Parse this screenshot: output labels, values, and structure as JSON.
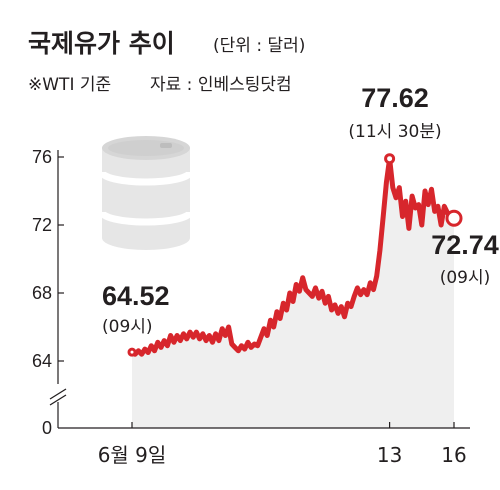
{
  "header": {
    "title": "국제유가 추이",
    "unit": "(단위 : 달러)",
    "basis": "※WTI 기준",
    "source": "자료 : 인베스팅닷컴"
  },
  "chart_data": {
    "type": "line",
    "ylim": [
      62,
      77
    ],
    "yticks": [
      "76",
      "72",
      "68",
      "64"
    ],
    "y_zero_label": "0",
    "y_axis_break": true,
    "xticks": [
      {
        "label": "6월 9일",
        "x": 0
      },
      {
        "label": "13",
        "x": 4
      },
      {
        "label": "16",
        "x": 5
      }
    ],
    "series_color": "#d7262c",
    "fill_color": "#efefef",
    "annotations": [
      {
        "value": "64.52",
        "time": "(09시)",
        "x": 0,
        "y": 64.52
      },
      {
        "value": "77.62",
        "time": "(11시 30분)",
        "x": 4,
        "y": 75.9
      },
      {
        "value": "72.74",
        "time": "(09시)",
        "x": 5,
        "y": 72.4
      }
    ],
    "points": [
      [
        0,
        64.52
      ],
      [
        0.05,
        64.4
      ],
      [
        0.1,
        64.6
      ],
      [
        0.15,
        64.4
      ],
      [
        0.2,
        64.7
      ],
      [
        0.25,
        64.5
      ],
      [
        0.3,
        64.9
      ],
      [
        0.35,
        64.6
      ],
      [
        0.4,
        65.1
      ],
      [
        0.45,
        64.8
      ],
      [
        0.5,
        65.2
      ],
      [
        0.55,
        64.9
      ],
      [
        0.6,
        65.5
      ],
      [
        0.65,
        65.1
      ],
      [
        0.7,
        65.5
      ],
      [
        0.75,
        65.2
      ],
      [
        0.8,
        65.6
      ],
      [
        0.85,
        65.3
      ],
      [
        0.9,
        65.7
      ],
      [
        0.95,
        65.4
      ],
      [
        1.0,
        65.7
      ],
      [
        1.05,
        65.3
      ],
      [
        1.1,
        65.6
      ],
      [
        1.15,
        65.2
      ],
      [
        1.2,
        65.5
      ],
      [
        1.25,
        65.1
      ],
      [
        1.3,
        65.6
      ],
      [
        1.35,
        65.2
      ],
      [
        1.4,
        65.9
      ],
      [
        1.45,
        65.5
      ],
      [
        1.5,
        66.0
      ],
      [
        1.55,
        65.0
      ],
      [
        1.6,
        64.8
      ],
      [
        1.65,
        64.6
      ],
      [
        1.7,
        64.9
      ],
      [
        1.75,
        64.7
      ],
      [
        1.8,
        65.1
      ],
      [
        1.85,
        64.8
      ],
      [
        1.9,
        65.0
      ],
      [
        1.95,
        64.9
      ],
      [
        2.0,
        65.4
      ],
      [
        2.05,
        65.9
      ],
      [
        2.1,
        65.5
      ],
      [
        2.15,
        66.4
      ],
      [
        2.2,
        66.0
      ],
      [
        2.25,
        66.9
      ],
      [
        2.3,
        66.5
      ],
      [
        2.35,
        67.4
      ],
      [
        2.4,
        67.0
      ],
      [
        2.45,
        68.0
      ],
      [
        2.5,
        67.5
      ],
      [
        2.55,
        68.5
      ],
      [
        2.6,
        68.1
      ],
      [
        2.65,
        68.9
      ],
      [
        2.7,
        68.2
      ],
      [
        2.75,
        68.0
      ],
      [
        2.8,
        67.8
      ],
      [
        2.85,
        68.3
      ],
      [
        2.9,
        67.7
      ],
      [
        2.95,
        68.1
      ],
      [
        3.0,
        67.4
      ],
      [
        3.05,
        67.8
      ],
      [
        3.1,
        67.0
      ],
      [
        3.15,
        67.3
      ],
      [
        3.2,
        66.8
      ],
      [
        3.25,
        67.2
      ],
      [
        3.3,
        66.6
      ],
      [
        3.35,
        67.4
      ],
      [
        3.4,
        67.2
      ],
      [
        3.45,
        67.8
      ],
      [
        3.5,
        68.3
      ],
      [
        3.55,
        67.9
      ],
      [
        3.6,
        68.2
      ],
      [
        3.65,
        67.9
      ],
      [
        3.7,
        68.6
      ],
      [
        3.75,
        68.2
      ],
      [
        3.8,
        69.0
      ],
      [
        3.85,
        70.5
      ],
      [
        3.9,
        72.5
      ],
      [
        3.95,
        74.5
      ],
      [
        4.0,
        75.9
      ],
      [
        4.05,
        74.2
      ],
      [
        4.1,
        73.6
      ],
      [
        4.15,
        74.2
      ],
      [
        4.2,
        72.5
      ],
      [
        4.25,
        73.4
      ],
      [
        4.3,
        71.8
      ],
      [
        4.35,
        73.7
      ],
      [
        4.4,
        73.0
      ],
      [
        4.45,
        73.2
      ],
      [
        4.5,
        72.0
      ],
      [
        4.55,
        74.0
      ],
      [
        4.6,
        73.2
      ],
      [
        4.65,
        74.1
      ],
      [
        4.7,
        72.8
      ],
      [
        4.75,
        73.1
      ],
      [
        4.8,
        72.0
      ],
      [
        4.85,
        73.1
      ],
      [
        4.9,
        72.7
      ],
      [
        5.0,
        72.4
      ]
    ]
  }
}
